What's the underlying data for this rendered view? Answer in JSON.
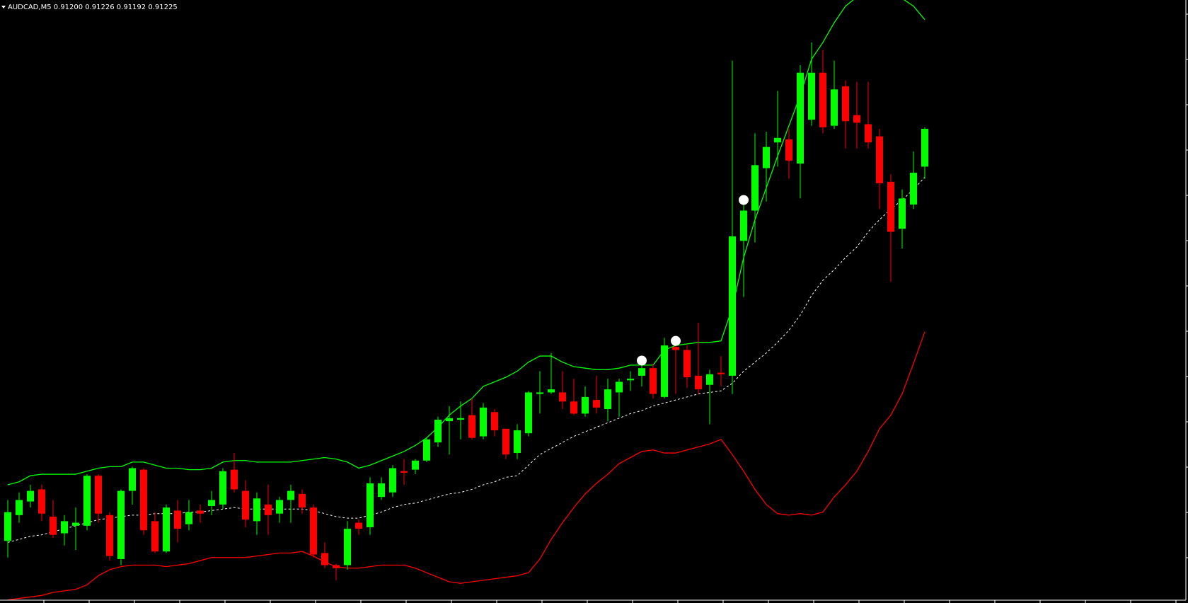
{
  "chart_data": {
    "type": "candlestick",
    "title": "AUDCAD,M5  0.91200 0.91226 0.91192 0.91225",
    "up_color": "#00ff00",
    "down_color": "#ff0000",
    "ylim": [
      0.90912,
      0.9131
    ],
    "open": [
      0.90953,
      0.9097,
      0.90979,
      0.90987,
      0.90969,
      0.90958,
      0.90963,
      0.90963,
      0.90996,
      0.9097,
      0.90941,
      0.90986,
      0.91,
      0.90966,
      0.90946,
      0.90973,
      0.90964,
      0.90973,
      0.90976,
      0.90977,
      0.91,
      0.90986,
      0.90966,
      0.90977,
      0.90971,
      0.9098,
      0.90984,
      0.90975,
      0.90945,
      0.90937,
      0.90937,
      0.90965,
      0.90962,
      0.90982,
      0.90985,
      0.90999,
      0.91,
      0.91006,
      0.91018,
      0.91032,
      0.91033,
      0.91036,
      0.91022,
      0.91038,
      0.91027,
      0.91011,
      0.91024,
      0.9105,
      0.91051,
      0.91051,
      0.91045,
      0.91037,
      0.91046,
      0.9104,
      0.91051,
      0.91059,
      0.91062,
      0.91067,
      0.91048,
      0.91081,
      0.91079,
      0.91062,
      0.91056,
      0.91064,
      0.91062,
      0.91151,
      0.91171,
      0.91199,
      0.91216,
      0.91218,
      0.91202,
      0.91231,
      0.91262,
      0.91227,
      0.91253,
      0.91234,
      0.91228,
      0.9122,
      0.9119,
      0.91159,
      0.91175,
      0.912
    ],
    "high": [
      0.9098,
      0.90985,
      0.9099,
      0.9099,
      0.9098,
      0.9097,
      0.90975,
      0.90997,
      0.90997,
      0.90972,
      0.90987,
      0.91002,
      0.91001,
      0.90972,
      0.90977,
      0.9098,
      0.9098,
      0.90977,
      0.90986,
      0.91001,
      0.91011,
      0.90993,
      0.90985,
      0.9099,
      0.90982,
      0.9099,
      0.90987,
      0.90977,
      0.90952,
      0.90938,
      0.90966,
      0.90967,
      0.90995,
      0.90995,
      0.91003,
      0.91007,
      0.91007,
      0.91021,
      0.91035,
      0.91042,
      0.91045,
      0.91047,
      0.91044,
      0.9104,
      0.91027,
      0.9103,
      0.91052,
      0.91065,
      0.91077,
      0.91065,
      0.9106,
      0.91055,
      0.91062,
      0.9106,
      0.9106,
      0.91065,
      0.91072,
      0.9107,
      0.91087,
      0.91087,
      0.91082,
      0.91097,
      0.91066,
      0.91075,
      0.9127,
      0.91175,
      0.91222,
      0.91223,
      0.9125,
      0.91225,
      0.91267,
      0.91282,
      0.91277,
      0.9127,
      0.91257,
      0.91256,
      0.91256,
      0.91225,
      0.91195,
      0.91185,
      0.9121,
      0.91226
    ],
    "low": [
      0.90942,
      0.90965,
      0.90975,
      0.90966,
      0.90955,
      0.9095,
      0.90947,
      0.9096,
      0.90965,
      0.9094,
      0.90937,
      0.90977,
      0.90957,
      0.90945,
      0.90945,
      0.90952,
      0.9096,
      0.90965,
      0.9097,
      0.90974,
      0.90985,
      0.90962,
      0.90957,
      0.90957,
      0.90965,
      0.90965,
      0.90971,
      0.90942,
      0.90935,
      0.90927,
      0.90934,
      0.90957,
      0.90957,
      0.9098,
      0.90982,
      0.9099,
      0.90997,
      0.91005,
      0.91015,
      0.9101,
      0.9102,
      0.9102,
      0.9102,
      0.91022,
      0.91007,
      0.91007,
      0.91022,
      0.91037,
      0.9105,
      0.9104,
      0.91036,
      0.91035,
      0.91037,
      0.91032,
      0.91035,
      0.91052,
      0.91055,
      0.91047,
      0.91047,
      0.9105,
      0.91054,
      0.9105,
      0.9103,
      0.91055,
      0.9105,
      0.91114,
      0.9115,
      0.91177,
      0.912,
      0.91192,
      0.91179,
      0.91227,
      0.91222,
      0.91225,
      0.91212,
      0.91212,
      0.91212,
      0.91172,
      0.91124,
      0.91146,
      0.91172,
      0.91192
    ],
    "close": [
      0.90972,
      0.9098,
      0.90986,
      0.90971,
      0.90957,
      0.90966,
      0.90965,
      0.90996,
      0.90971,
      0.90943,
      0.90986,
      0.91001,
      0.9096,
      0.90946,
      0.90975,
      0.90961,
      0.90972,
      0.90971,
      0.9098,
      0.90999,
      0.90987,
      0.90967,
      0.90981,
      0.9097,
      0.9098,
      0.90986,
      0.90975,
      0.90944,
      0.90937,
      0.90935,
      0.90961,
      0.90961,
      0.90991,
      0.90991,
      0.91001,
      0.90998,
      0.91006,
      0.9102,
      0.91033,
      0.91034,
      0.91034,
      0.91021,
      0.91041,
      0.91026,
      0.9101,
      0.91026,
      0.91051,
      0.91051,
      0.91053,
      0.91045,
      0.91037,
      0.91048,
      0.91041,
      0.91053,
      0.91058,
      0.9106,
      0.91067,
      0.9105,
      0.91082,
      0.91079,
      0.91061,
      0.91053,
      0.91063,
      0.91063,
      0.91154,
      0.91171,
      0.91201,
      0.91213,
      0.91219,
      0.91204,
      0.91262,
      0.91262,
      0.91226,
      0.91251,
      0.9123,
      0.91229,
      0.91216,
      0.91189,
      0.91157,
      0.91179,
      0.91196,
      0.91225
    ],
    "series": [
      {
        "color": "#00ff00",
        "dashed": false,
        "values": [
          0.9099,
          0.90992,
          0.90996,
          0.90997,
          0.90997,
          0.90997,
          0.90997,
          0.90999,
          0.91001,
          0.91002,
          0.91002,
          0.91005,
          0.91005,
          0.91003,
          0.91001,
          0.91001,
          0.91,
          0.91,
          0.91001,
          0.91005,
          0.91006,
          0.91006,
          0.91005,
          0.91005,
          0.91005,
          0.91005,
          0.91006,
          0.91007,
          0.91008,
          0.91007,
          0.91005,
          0.91001,
          0.91003,
          0.91006,
          0.91009,
          0.91012,
          0.91016,
          0.91021,
          0.91028,
          0.91036,
          0.91042,
          0.91047,
          0.91055,
          0.91058,
          0.91061,
          0.91065,
          0.91071,
          0.91075,
          0.91075,
          0.91071,
          0.91068,
          0.91067,
          0.91066,
          0.91066,
          0.91067,
          0.91069,
          0.91069,
          0.91069,
          0.91079,
          0.91082,
          0.91083,
          0.91084,
          0.91084,
          0.91085,
          0.91107,
          0.9114,
          0.91165,
          0.91186,
          0.91207,
          0.91227,
          0.91247,
          0.91271,
          0.91282,
          0.91295,
          0.91306,
          0.91312,
          0.91314,
          0.91313,
          0.91313,
          0.91311,
          0.91306,
          0.91297
        ]
      },
      {
        "color": "#ffffff",
        "dashed": true,
        "values": [
          0.90952,
          0.90954,
          0.90956,
          0.90957,
          0.90959,
          0.90961,
          0.90963,
          0.90965,
          0.90967,
          0.90968,
          0.90969,
          0.9097,
          0.9097,
          0.90971,
          0.90971,
          0.90971,
          0.90972,
          0.90972,
          0.90973,
          0.90974,
          0.90975,
          0.90974,
          0.90974,
          0.90974,
          0.90974,
          0.90974,
          0.90974,
          0.90973,
          0.90971,
          0.90969,
          0.90968,
          0.90968,
          0.9097,
          0.90972,
          0.90975,
          0.90977,
          0.90978,
          0.9098,
          0.90982,
          0.90984,
          0.90985,
          0.90987,
          0.9099,
          0.90992,
          0.90995,
          0.90996,
          0.91003,
          0.9101,
          0.91014,
          0.91018,
          0.91022,
          0.91025,
          0.91028,
          0.91031,
          0.91034,
          0.91037,
          0.91039,
          0.91042,
          0.91044,
          0.91046,
          0.91048,
          0.9105,
          0.91051,
          0.91052,
          0.91057,
          0.91065,
          0.91071,
          0.91077,
          0.91084,
          0.91092,
          0.91102,
          0.91115,
          0.91125,
          0.91132,
          0.9114,
          0.91147,
          0.91157,
          0.91165,
          0.91172,
          0.91178,
          0.91185,
          0.91193
        ]
      },
      {
        "color": "#ff0000",
        "dashed": false,
        "values": [
          0.90914,
          0.90915,
          0.90916,
          0.90917,
          0.90919,
          0.9092,
          0.90921,
          0.90924,
          0.9093,
          0.90934,
          0.90936,
          0.90937,
          0.90937,
          0.90937,
          0.90936,
          0.90937,
          0.90938,
          0.9094,
          0.90942,
          0.90942,
          0.90942,
          0.90942,
          0.90943,
          0.90944,
          0.90945,
          0.90945,
          0.90946,
          0.90943,
          0.90939,
          0.90936,
          0.90935,
          0.90935,
          0.90936,
          0.90937,
          0.90937,
          0.90937,
          0.90935,
          0.90932,
          0.90929,
          0.90926,
          0.90925,
          0.90926,
          0.90927,
          0.90928,
          0.90929,
          0.9093,
          0.90932,
          0.90941,
          0.90954,
          0.90965,
          0.90975,
          0.90984,
          0.90991,
          0.90997,
          0.91004,
          0.91008,
          0.91012,
          0.91013,
          0.91011,
          0.91011,
          0.91013,
          0.91015,
          0.91017,
          0.9102,
          0.9101,
          0.90999,
          0.90987,
          0.90977,
          0.90971,
          0.9097,
          0.90971,
          0.9097,
          0.90972,
          0.90982,
          0.9099,
          0.90999,
          0.91012,
          0.91027,
          0.91036,
          0.9105,
          0.9107,
          0.91091
        ]
      }
    ],
    "markers": {
      "color": "#ffffff",
      "values": [
        null,
        null,
        null,
        null,
        null,
        null,
        null,
        null,
        null,
        null,
        null,
        null,
        null,
        null,
        null,
        null,
        null,
        null,
        null,
        null,
        null,
        null,
        null,
        null,
        null,
        null,
        null,
        null,
        null,
        null,
        null,
        null,
        null,
        null,
        null,
        null,
        null,
        null,
        null,
        null,
        null,
        null,
        null,
        null,
        null,
        null,
        null,
        null,
        null,
        null,
        null,
        null,
        null,
        null,
        null,
        null,
        0.91072,
        null,
        null,
        0.91085,
        null,
        null,
        null,
        null,
        null,
        0.91178,
        null,
        null,
        null,
        null,
        null,
        null,
        null,
        null,
        null,
        null,
        null,
        null,
        null,
        null,
        null,
        null
      ]
    }
  }
}
